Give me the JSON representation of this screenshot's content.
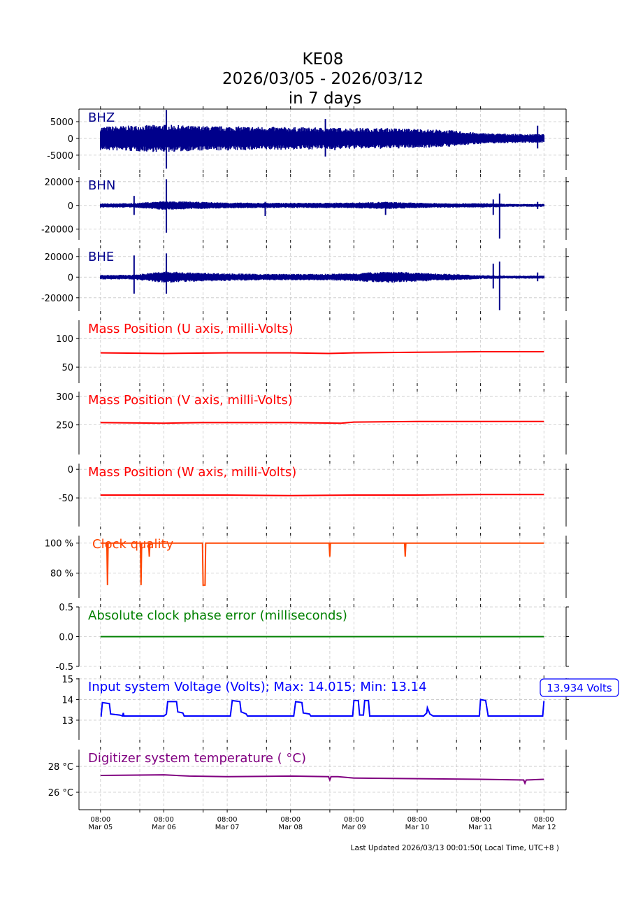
{
  "title": [
    "KE08",
    "2026/03/05 - 2026/03/12",
    "in 7 days"
  ],
  "footer": "Last Updated 2026/03/13 00:01:50( Local Time, UTC+8 )",
  "chart_data": {
    "type": "line",
    "x_unit": "days since Mar 05 08:00",
    "xlim": [
      -0.34,
      7.35
    ],
    "x_ticks": [
      {
        "v": 0,
        "l1": "08:00",
        "l2": "Mar 05"
      },
      {
        "v": 1,
        "l1": "08:00",
        "l2": "Mar 06"
      },
      {
        "v": 2,
        "l1": "08:00",
        "l2": "Mar 07"
      },
      {
        "v": 3,
        "l1": "08:00",
        "l2": "Mar 08"
      },
      {
        "v": 4,
        "l1": "08:00",
        "l2": "Mar 09"
      },
      {
        "v": 5,
        "l1": "08:00",
        "l2": "Mar 10"
      },
      {
        "v": 6,
        "l1": "08:00",
        "l2": "Mar 11"
      },
      {
        "v": 7,
        "l1": "08:00",
        "l2": "Mar 12"
      }
    ],
    "panels": [
      {
        "kind": "seis",
        "label": "BHZ",
        "color": "#00008b",
        "ylim": [
          -9400,
          8750
        ],
        "yticks": [
          {
            "v": 5000,
            "l": "5000"
          },
          {
            "v": 0,
            "l": "0"
          },
          {
            "v": -5000,
            "l": "-5000"
          }
        ],
        "envelope": [
          2800,
          3100,
          3300,
          3000,
          2900,
          2800,
          2700,
          2600,
          2500,
          2500,
          2300,
          2000,
          1300,
          1100,
          1000,
          900
        ],
        "spikes": [
          [
            1.04,
            8500,
            -9000
          ],
          [
            3.55,
            5800,
            -5400
          ],
          [
            3.7,
            2800,
            -3500
          ],
          [
            6.9,
            3800,
            -3000
          ]
        ]
      },
      {
        "kind": "seis",
        "label": "BHN",
        "color": "#00008b",
        "ylim": [
          -29000,
          24000
        ],
        "yticks": [
          {
            "v": 20000,
            "l": "20000"
          },
          {
            "v": 0,
            "l": "0"
          },
          {
            "v": -20000,
            "l": "-20000"
          }
        ],
        "envelope": [
          1500,
          1500,
          3000,
          2500,
          2000,
          1800,
          1800,
          1800,
          2000,
          2500,
          1800,
          1500,
          1500,
          1000,
          1000,
          1000
        ],
        "spikes": [
          [
            0.53,
            8000,
            -8000
          ],
          [
            1.04,
            22000,
            -23000
          ],
          [
            2.6,
            3000,
            -9000
          ],
          [
            4.5,
            3000,
            -8000
          ],
          [
            6.2,
            5000,
            -8000
          ],
          [
            6.3,
            10000,
            -28000
          ],
          [
            6.9,
            3000,
            -3000
          ]
        ]
      },
      {
        "kind": "seis",
        "label": "BHE",
        "color": "#00008b",
        "ylim": [
          -33000,
          28000
        ],
        "yticks": [
          {
            "v": 20000,
            "l": "20000"
          },
          {
            "v": 0,
            "l": "0"
          },
          {
            "v": -20000,
            "l": "-20000"
          }
        ],
        "envelope": [
          1800,
          1800,
          4500,
          3500,
          3000,
          2500,
          2500,
          2500,
          3000,
          4500,
          3500,
          2500,
          1500,
          1200,
          1200,
          1200
        ],
        "spikes": [
          [
            0.53,
            21000,
            -16000
          ],
          [
            1.04,
            23000,
            -16000
          ],
          [
            6.2,
            13000,
            -11000
          ],
          [
            6.3,
            15000,
            -32000
          ],
          [
            6.9,
            4500,
            -4000
          ]
        ]
      },
      {
        "kind": "line",
        "label": "Mass Position (U axis, milli-Volts)",
        "color": "#ff0000",
        "ylim": [
          22,
          132
        ],
        "yticks": [
          {
            "v": 100,
            "l": "100"
          },
          {
            "v": 50,
            "l": "50"
          }
        ],
        "x": [
          0,
          1,
          2,
          3,
          3.6,
          4,
          5,
          6,
          7
        ],
        "y": [
          75,
          74,
          75,
          75,
          74,
          75,
          76,
          77,
          77
        ]
      },
      {
        "kind": "line",
        "label": "Mass Position (V axis, milli-Volts)",
        "color": "#ff0000",
        "ylim": [
          198,
          308.5
        ],
        "yticks": [
          {
            "v": 300,
            "l": "300"
          },
          {
            "v": 250,
            "l": "250"
          }
        ],
        "x": [
          0,
          1,
          1.6,
          3,
          3.8,
          4,
          5,
          6,
          7
        ],
        "y": [
          254,
          253,
          254,
          254,
          253,
          255,
          256,
          256,
          256
        ]
      },
      {
        "kind": "line",
        "label": "Mass Position (W axis, milli-Volts)",
        "color": "#ff0000",
        "ylim": [
          -100,
          10
        ],
        "yticks": [
          {
            "v": 0,
            "l": "0"
          },
          {
            "v": -50,
            "l": "-50"
          }
        ],
        "x": [
          0,
          1,
          2,
          3,
          4,
          5,
          6,
          7
        ],
        "y": [
          -45,
          -45,
          -45,
          -46,
          -45,
          -45,
          -44,
          -44
        ]
      },
      {
        "kind": "line",
        "label": "Clock quality",
        "color": "#ff4500",
        "ylim": [
          63.6,
          105
        ],
        "yticks": [
          {
            "v": 100,
            "l": "100 %"
          },
          {
            "v": 80,
            "l": "80 %"
          }
        ],
        "x": [
          0,
          0.1,
          0.11,
          0.12,
          0.63,
          0.64,
          0.65,
          0.76,
          0.77,
          0.78,
          1.61,
          1.62,
          1.65,
          1.66,
          3.61,
          3.62,
          3.63,
          4.8,
          4.81,
          4.82,
          7
        ],
        "y": [
          100,
          100,
          72,
          100,
          100,
          72,
          100,
          100,
          91,
          100,
          100,
          72,
          72,
          100,
          100,
          91,
          100,
          100,
          91,
          100,
          100
        ]
      },
      {
        "kind": "line",
        "label": "Absolute clock phase error (milliseconds)",
        "color": "#008000",
        "ylim": [
          -0.5,
          0.5
        ],
        "yticks": [
          {
            "v": 0.5,
            "l": "0.5"
          },
          {
            "v": 0,
            "l": "0.0"
          },
          {
            "v": -0.5,
            "l": "-0.5"
          }
        ],
        "x": [
          0,
          7
        ],
        "y": [
          0,
          0
        ]
      },
      {
        "kind": "line",
        "label": "Input system Voltage (Volts);    Max: 14.015; Min: 13.14",
        "color": "#0000ff",
        "ylim": [
          12.05,
          15.03
        ],
        "yticks": [
          {
            "v": 15,
            "l": "15"
          },
          {
            "v": 14,
            "l": "14"
          },
          {
            "v": 13,
            "l": "13"
          }
        ],
        "badge": "13.934 Volts",
        "x": [
          0,
          0.01,
          0.03,
          0.14,
          0.16,
          0.3,
          0.35,
          0.36,
          0.37,
          1.0,
          1.04,
          1.06,
          1.2,
          1.22,
          1.3,
          1.32,
          2.05,
          2.08,
          2.2,
          2.22,
          2.3,
          2.32,
          3.05,
          3.08,
          3.18,
          3.2,
          3.3,
          3.32,
          3.98,
          4.0,
          4.07,
          4.09,
          4.15,
          4.17,
          4.23,
          4.25,
          5.1,
          5.15,
          5.16,
          5.2,
          5.25,
          5.98,
          6.0,
          6.08,
          6.12,
          6.95,
          6.98,
          7
        ],
        "y": [
          13.2,
          13.2,
          13.85,
          13.8,
          13.3,
          13.25,
          13.2,
          13.35,
          13.2,
          13.2,
          13.3,
          13.9,
          13.9,
          13.4,
          13.35,
          13.2,
          13.2,
          13.95,
          13.9,
          13.4,
          13.3,
          13.2,
          13.2,
          13.9,
          13.85,
          13.35,
          13.3,
          13.2,
          13.2,
          13.95,
          13.95,
          13.25,
          13.25,
          13.95,
          13.95,
          13.2,
          13.2,
          13.35,
          13.6,
          13.3,
          13.2,
          13.2,
          14.0,
          13.95,
          13.2,
          13.2,
          13.2,
          13.93
        ]
      },
      {
        "kind": "line",
        "label": "Digitizer system temperature ( °C)",
        "color": "#800080",
        "ylim": [
          24.65,
          29.3
        ],
        "yticks": [
          {
            "v": 28,
            "l": "28 °C"
          },
          {
            "v": 26,
            "l": "26 °C"
          }
        ],
        "x": [
          0,
          1,
          1.4,
          2,
          3,
          3.6,
          3.62,
          3.64,
          3.75,
          4,
          5,
          6,
          6.68,
          6.7,
          6.72,
          7
        ],
        "y": [
          27.3,
          27.35,
          27.25,
          27.2,
          27.25,
          27.2,
          26.95,
          27.2,
          27.2,
          27.1,
          27.05,
          27.0,
          26.95,
          26.7,
          26.95,
          27.0
        ]
      }
    ]
  }
}
